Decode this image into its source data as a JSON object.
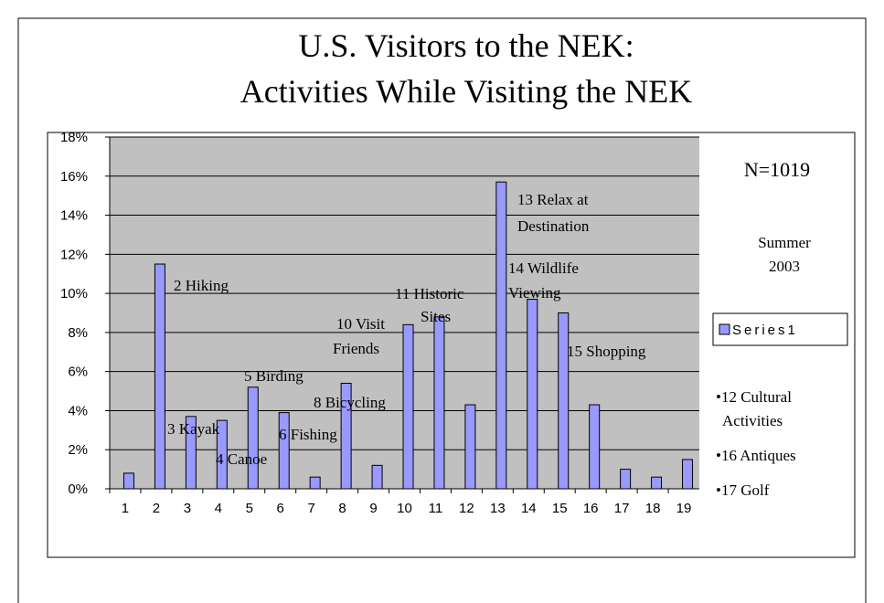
{
  "chart_data": {
    "type": "bar",
    "title": [
      "U.S. Visitors to the NEK:",
      "Activities While Visiting the NEK"
    ],
    "categories": [
      "1",
      "2",
      "3",
      "4",
      "5",
      "6",
      "7",
      "8",
      "9",
      "10",
      "11",
      "12",
      "13",
      "14",
      "15",
      "16",
      "17",
      "18",
      "19"
    ],
    "series": [
      {
        "name": "Series1",
        "color": "#9999ff",
        "values": [
          0.8,
          11.5,
          3.7,
          3.5,
          5.2,
          3.9,
          0.6,
          5.4,
          1.2,
          8.4,
          8.8,
          4.3,
          15.7,
          9.7,
          9.0,
          4.3,
          1.0,
          0.6,
          1.5
        ]
      }
    ],
    "ylim": [
      0,
      18
    ],
    "yticks": [
      {
        "value": 0,
        "label": "0%"
      },
      {
        "value": 2,
        "label": "2%"
      },
      {
        "value": 4,
        "label": "4%"
      },
      {
        "value": 6,
        "label": "6%"
      },
      {
        "value": 8,
        "label": "8%"
      },
      {
        "value": 10,
        "label": "10%"
      },
      {
        "value": 12,
        "label": "12%"
      },
      {
        "value": 14,
        "label": "14%"
      },
      {
        "value": 16,
        "label": "16%"
      },
      {
        "value": 18,
        "label": "18%"
      }
    ],
    "grid": true,
    "legend": "right",
    "annotations": [
      [
        "2 Hiking"
      ],
      [
        "3 Kayak"
      ],
      [
        "4 Canoe"
      ],
      [
        "5 Birding"
      ],
      [
        "6 Fishing"
      ],
      [
        "8 Bicycling"
      ],
      [
        "10 Visit",
        "Friends"
      ],
      [
        "11 Historic",
        "Sites"
      ],
      [
        "13 Relax at",
        "Destination"
      ],
      [
        "14 Wildlife",
        "Viewing"
      ],
      [
        "15 Shopping"
      ]
    ],
    "side_notes": [
      [
        "N=1019"
      ],
      [
        "Summer",
        "2003"
      ],
      [
        "•12 Cultural",
        "Activities"
      ],
      [
        "•16 Antiques"
      ],
      [
        "•17 Golf"
      ]
    ]
  }
}
